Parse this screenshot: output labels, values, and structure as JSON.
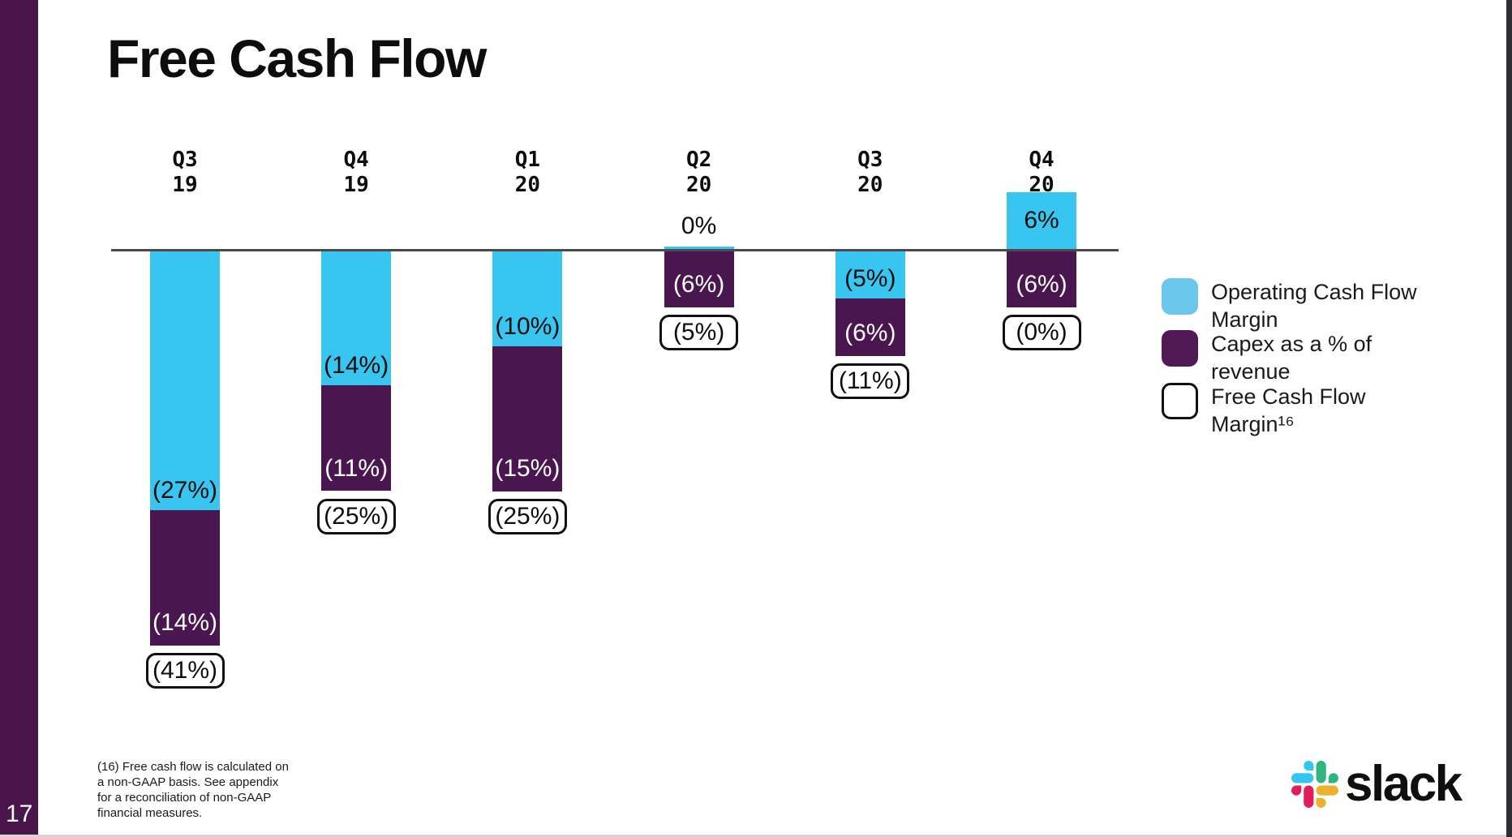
{
  "page": {
    "number": "17"
  },
  "title": "Free Cash Flow",
  "colors": {
    "sidebar": "#4A154B",
    "operating_bar": "#38C5F0",
    "capex_bar": "#49164F",
    "legend_operating_swatch": "#6BC7EC",
    "legend_capex_swatch": "#4F1A56",
    "zero_line": "#4a4a4a"
  },
  "legend": {
    "items": [
      {
        "swatch": "operating",
        "line1": "Operating Cash Flow",
        "line2": "Margin"
      },
      {
        "swatch": "capex",
        "line1": "Capex as a % of",
        "line2": "revenue"
      },
      {
        "swatch": "fcf",
        "line1": "Free Cash Flow",
        "line2": "Margin¹⁶"
      }
    ]
  },
  "chart_data": {
    "type": "bar",
    "stacked": true,
    "title": "Free Cash Flow",
    "categories": [
      [
        "Q3",
        "19"
      ],
      [
        "Q4",
        "19"
      ],
      [
        "Q1",
        "20"
      ],
      [
        "Q2",
        "20"
      ],
      [
        "Q3",
        "20"
      ],
      [
        "Q4",
        "20"
      ]
    ],
    "series": [
      {
        "name": "Operating Cash Flow Margin",
        "values": [
          -27,
          -14,
          -10,
          0,
          -5,
          6
        ],
        "labels": [
          "(27%)",
          "(14%)",
          "(10%)",
          "0%",
          "(5%)",
          "6%"
        ]
      },
      {
        "name": "Capex as a % of revenue",
        "values": [
          -14,
          -11,
          -15,
          -6,
          -6,
          -6
        ],
        "labels": [
          "(14%)",
          "(11%)",
          "(15%)",
          "(6%)",
          "(6%)",
          "(6%)"
        ]
      },
      {
        "name": "Free Cash Flow Margin",
        "values": [
          -41,
          -25,
          -25,
          -5,
          -11,
          0
        ],
        "labels": [
          "(41%)",
          "(25%)",
          "(25%)",
          "(5%)",
          "(11%)",
          "(0%)"
        ]
      }
    ],
    "ylabel": "",
    "xlabel": "",
    "axis": "zero baseline only, no gridlines, no tick axis",
    "legend_position": "right"
  },
  "footnote": {
    "text": "(16) Free cash flow is calculated on\na non-GAAP basis. See appendix\nfor a reconciliation of non-GAAP\nfinancial measures.",
    "superscript_reference": "16"
  },
  "logo": {
    "wordmark": "slack"
  }
}
